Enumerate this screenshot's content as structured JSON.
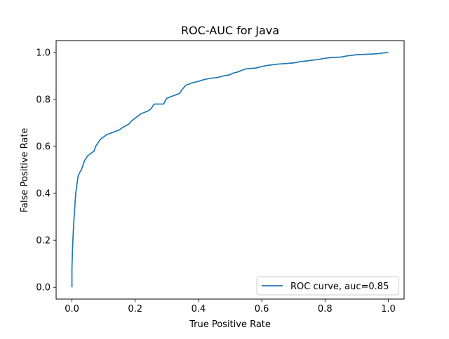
{
  "chart_data": {
    "type": "line",
    "title": "ROC-AUC for Java",
    "xlabel": "True Positive Rate",
    "ylabel": "False Positive Rate",
    "xlim": [
      -0.05,
      1.05
    ],
    "ylim": [
      -0.05,
      1.05
    ],
    "xticks": [
      0.0,
      0.2,
      0.4,
      0.6,
      0.8,
      1.0
    ],
    "yticks": [
      0.0,
      0.2,
      0.4,
      0.6,
      0.8,
      1.0
    ],
    "xtick_labels": [
      "0.0",
      "0.2",
      "0.4",
      "0.6",
      "0.8",
      "1.0"
    ],
    "ytick_labels": [
      "0.0",
      "0.2",
      "0.4",
      "0.6",
      "0.8",
      "1.0"
    ],
    "grid": false,
    "legend_position": "lower-right",
    "series": [
      {
        "name": "ROC curve, auc=0.85",
        "color": "#1f77b4",
        "x": [
          0.0,
          0.0,
          0.002,
          0.004,
          0.006,
          0.008,
          0.01,
          0.012,
          0.015,
          0.018,
          0.02,
          0.025,
          0.03,
          0.035,
          0.04,
          0.045,
          0.05,
          0.06,
          0.07,
          0.075,
          0.08,
          0.085,
          0.09,
          0.1,
          0.11,
          0.12,
          0.13,
          0.15,
          0.16,
          0.18,
          0.19,
          0.2,
          0.21,
          0.22,
          0.24,
          0.25,
          0.26,
          0.29,
          0.295,
          0.3,
          0.32,
          0.33,
          0.34,
          0.35,
          0.36,
          0.38,
          0.4,
          0.42,
          0.44,
          0.46,
          0.48,
          0.5,
          0.51,
          0.52,
          0.55,
          0.58,
          0.6,
          0.62,
          0.65,
          0.7,
          0.72,
          0.75,
          0.78,
          0.8,
          0.82,
          0.85,
          0.87,
          0.9,
          0.95,
          0.97,
          1.0
        ],
        "y": [
          0.0,
          0.08,
          0.17,
          0.23,
          0.28,
          0.32,
          0.36,
          0.4,
          0.43,
          0.46,
          0.475,
          0.49,
          0.5,
          0.52,
          0.54,
          0.55,
          0.56,
          0.57,
          0.58,
          0.6,
          0.61,
          0.62,
          0.63,
          0.64,
          0.65,
          0.655,
          0.66,
          0.67,
          0.68,
          0.695,
          0.71,
          0.72,
          0.73,
          0.74,
          0.75,
          0.76,
          0.78,
          0.78,
          0.795,
          0.805,
          0.815,
          0.82,
          0.825,
          0.845,
          0.86,
          0.87,
          0.877,
          0.885,
          0.89,
          0.893,
          0.9,
          0.905,
          0.912,
          0.915,
          0.93,
          0.933,
          0.94,
          0.945,
          0.95,
          0.955,
          0.96,
          0.965,
          0.97,
          0.975,
          0.978,
          0.98,
          0.985,
          0.99,
          0.993,
          0.995,
          1.0
        ]
      }
    ]
  }
}
